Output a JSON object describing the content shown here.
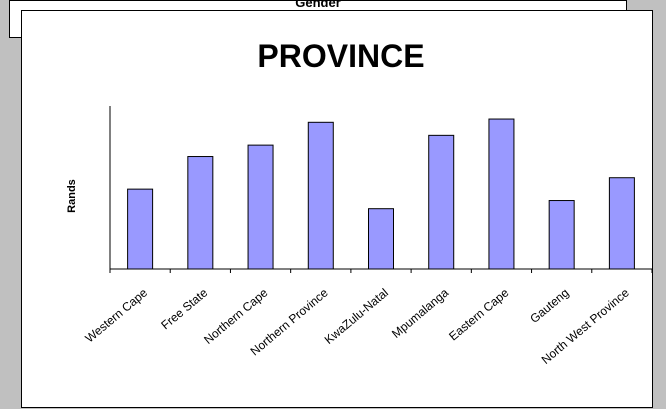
{
  "background_chart": {
    "title": "Gender"
  },
  "chart_data": {
    "type": "bar",
    "title": "PROVINCE",
    "ylabel": "Rands",
    "xlabel": "",
    "categories": [
      "Western Cape",
      "Free State",
      "Northern Cape",
      "Northern Province",
      "KwaZulu-Natal",
      "Mpumalanga",
      "Eastern Cape",
      "Gauteng",
      "North West Province"
    ],
    "values": [
      49,
      69,
      76,
      90,
      37,
      82,
      92,
      42,
      56
    ],
    "ylim": [
      0,
      100
    ],
    "grid": false,
    "legend": "none",
    "bar_color": "#9999ff",
    "bar_border": "#000000"
  }
}
